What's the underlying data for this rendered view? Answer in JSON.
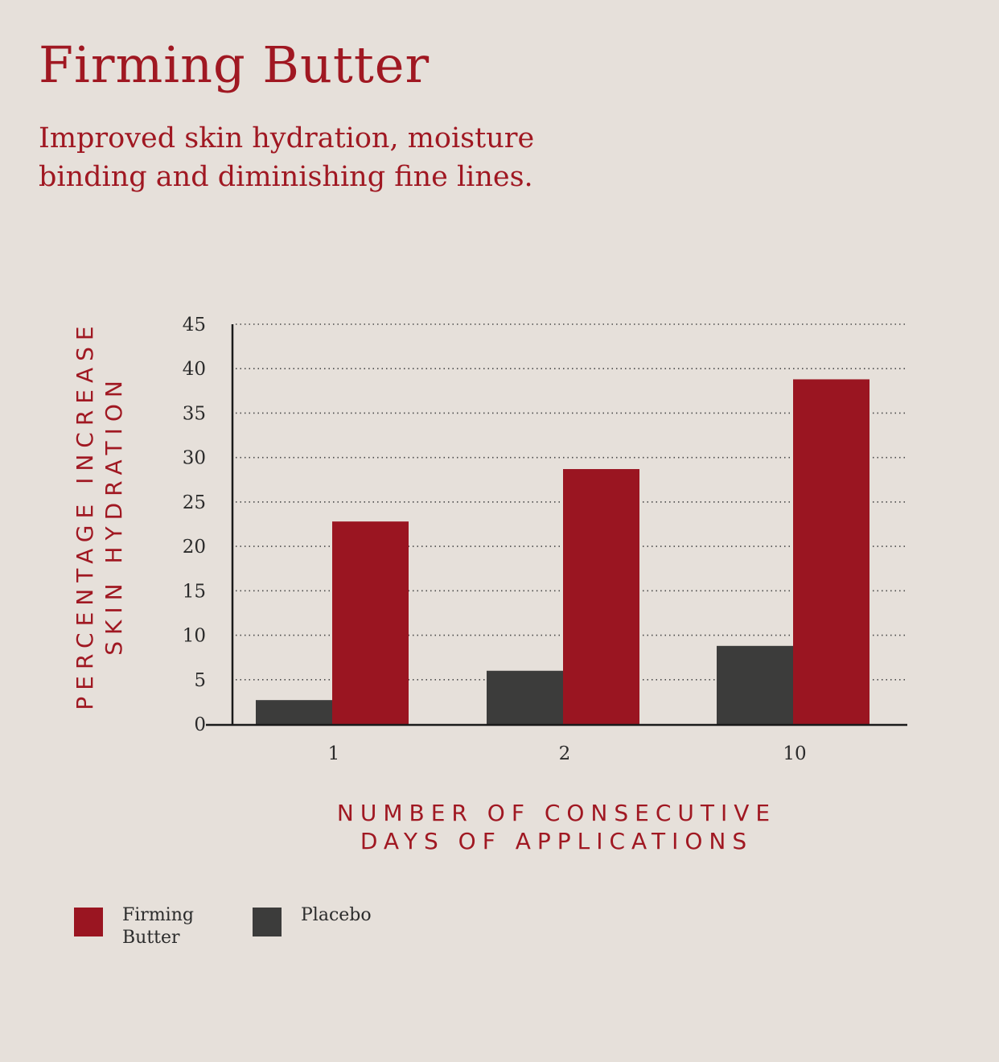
{
  "title": "Firming Butter",
  "subtitle_lines": [
    "Improved skin hydration, moisture",
    "binding and diminishing fine lines."
  ],
  "colors": {
    "firming": "#9a1521",
    "placebo": "#3c3c3b",
    "text_red": "#a01822",
    "axis": "#1a1a1a"
  },
  "chart_data": {
    "type": "bar",
    "categories": [
      "1",
      "2",
      "10"
    ],
    "series": [
      {
        "name": "Placebo",
        "values": [
          2.7,
          6.0,
          8.8
        ]
      },
      {
        "name": "Firming Butter",
        "values": [
          22.8,
          28.7,
          38.8
        ]
      }
    ],
    "ylim": [
      0,
      45
    ],
    "yticks": [
      0,
      5,
      10,
      15,
      20,
      25,
      30,
      35,
      40,
      45
    ],
    "ylabel_lines": [
      "PERCENTAGE INCREASE",
      "SKIN HYDRATION"
    ],
    "xlabel_lines": [
      "NUMBER OF CONSECUTIVE",
      "DAYS OF APPLICATIONS"
    ],
    "grid": "dotted",
    "legend_position": "bottom-left"
  },
  "legend": [
    {
      "label": "Firming Butter",
      "color": "#9a1521"
    },
    {
      "label": "Placebo",
      "color": "#3c3c3b"
    }
  ]
}
